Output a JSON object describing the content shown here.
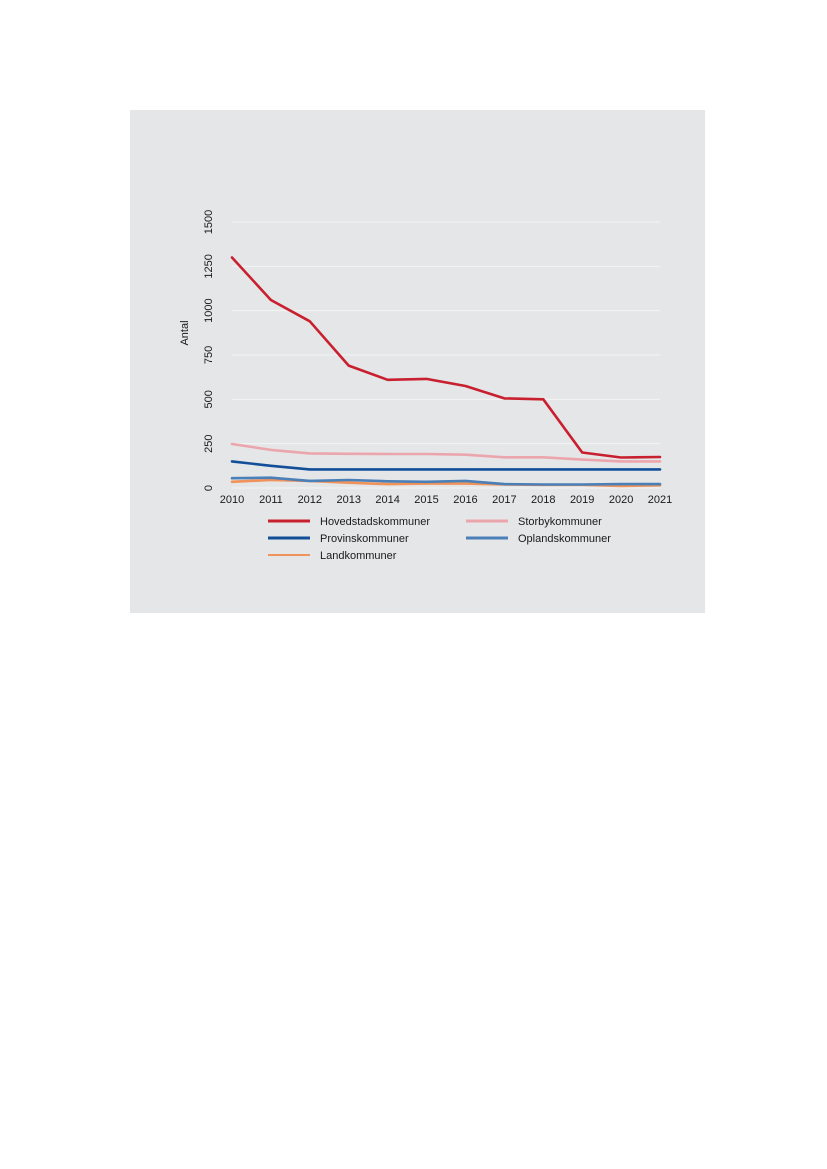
{
  "chart_data": {
    "type": "line",
    "ylabel": "Antal",
    "xlabel": "",
    "title": "",
    "ylim": [
      0,
      1500
    ],
    "yticks": [
      0,
      250,
      500,
      750,
      1000,
      1250,
      1500
    ],
    "x": [
      "2010",
      "2011",
      "2012",
      "2013",
      "2014",
      "2015",
      "2016",
      "2017",
      "2018",
      "2019",
      "2020",
      "2021"
    ],
    "grid": "horizontal",
    "legend_position": "bottom",
    "series": [
      {
        "name": "Hovedstadskommuner",
        "color": "#c8202f",
        "values": [
          1300,
          1060,
          940,
          690,
          610,
          615,
          575,
          505,
          500,
          200,
          172,
          175
        ]
      },
      {
        "name": "Storbykommuner",
        "color": "#eba6ad",
        "values": [
          248,
          215,
          195,
          193,
          192,
          192,
          188,
          173,
          173,
          160,
          150,
          150
        ]
      },
      {
        "name": "Provinskommuner",
        "color": "#134f99",
        "values": [
          150,
          125,
          105,
          105,
          105,
          105,
          105,
          105,
          105,
          105,
          105,
          105
        ]
      },
      {
        "name": "Oplandskommuner",
        "color": "#4a7fb8",
        "values": [
          55,
          58,
          40,
          45,
          38,
          35,
          40,
          22,
          20,
          20,
          22,
          22
        ]
      },
      {
        "name": "Landkommuner",
        "color": "#f0935a",
        "values": [
          35,
          45,
          40,
          30,
          22,
          25,
          25,
          20,
          18,
          18,
          12,
          15
        ]
      }
    ]
  }
}
